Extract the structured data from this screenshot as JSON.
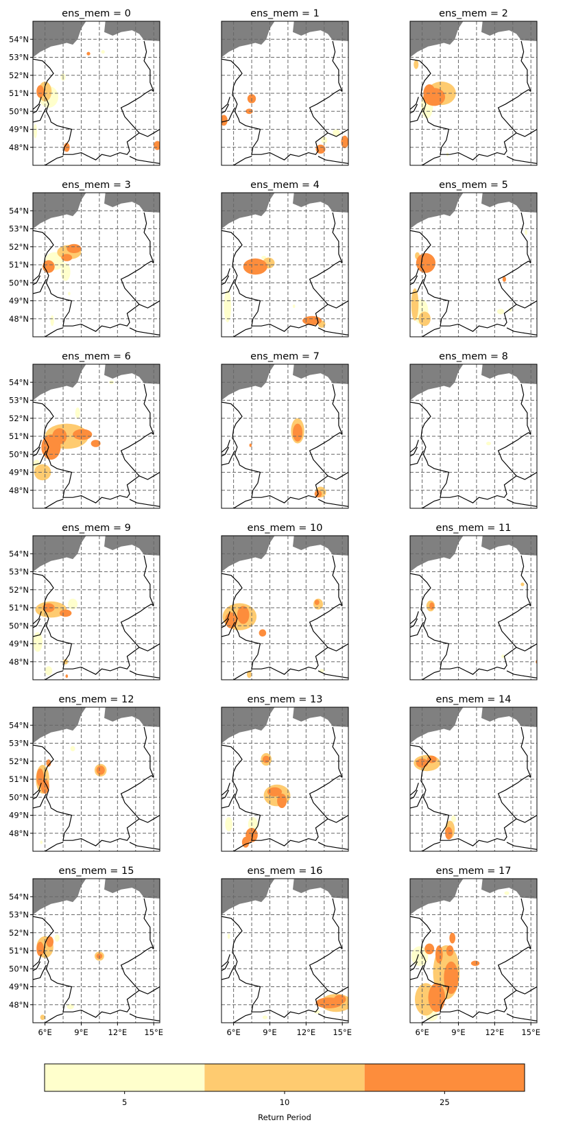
{
  "chart_data": {
    "type": "heatmap",
    "panel_title_prefix": "ens_mem = ",
    "members": [
      0,
      1,
      2,
      3,
      4,
      5,
      6,
      7,
      8,
      9,
      10,
      11,
      12,
      13,
      14,
      15,
      16,
      17
    ],
    "grid": {
      "rows": 6,
      "cols": 3
    },
    "lon_range": [
      5.0,
      15.5
    ],
    "lat_range": [
      47.0,
      55.0
    ],
    "lat_ticks": [
      48,
      49,
      50,
      51,
      52,
      53,
      54
    ],
    "lat_tick_labels": [
      "48°N",
      "49°N",
      "50°N",
      "51°N",
      "52°N",
      "53°N",
      "54°N"
    ],
    "lon_ticks": [
      6,
      9,
      12,
      15
    ],
    "lon_tick_labels": [
      "6°E",
      "9°E",
      "12°E",
      "15°E"
    ],
    "gridline_lons": [
      6,
      7.5,
      9,
      10.5,
      12,
      13.5,
      15
    ],
    "gridline_lats": [
      48,
      49,
      50,
      51,
      52,
      53,
      54
    ],
    "gridlines_style": "dashed",
    "ocean_color": "#808080",
    "border_color": "#000000",
    "colorbar": {
      "label": "Return Period",
      "levels": [
        {
          "label": "5",
          "color": "#ffffcc"
        },
        {
          "label": "10",
          "color": "#fecb70"
        },
        {
          "label": "25",
          "color": "#fd8d3c"
        }
      ]
    },
    "blobs": [
      [
        [
          6.0,
          51.1,
          0.55,
          0.55,
          1
        ],
        [
          5.6,
          51.1,
          0.3,
          0.35,
          2
        ],
        [
          6.3,
          50.8,
          0.8,
          0.6,
          0
        ],
        [
          7.8,
          48.0,
          0.25,
          0.25,
          2
        ],
        [
          5.2,
          48.9,
          0.15,
          0.4,
          0
        ],
        [
          15.3,
          48.1,
          0.3,
          0.25,
          2
        ],
        [
          9.6,
          53.2,
          0.15,
          0.1,
          2
        ],
        [
          10.8,
          53.3,
          0.15,
          0.1,
          0
        ],
        [
          7.5,
          51.9,
          0.2,
          0.2,
          0
        ]
      ],
      [
        [
          5.2,
          49.5,
          0.3,
          0.3,
          2
        ],
        [
          7.3,
          50.0,
          0.3,
          0.15,
          2
        ],
        [
          7.5,
          50.7,
          0.35,
          0.25,
          2
        ],
        [
          13.2,
          47.9,
          0.4,
          0.25,
          2
        ],
        [
          15.2,
          48.3,
          0.3,
          0.35,
          2
        ],
        [
          13.5,
          48.4,
          0.25,
          0.2,
          0
        ],
        [
          14.5,
          48.8,
          0.3,
          0.2,
          0
        ]
      ],
      [
        [
          7.0,
          50.8,
          0.9,
          0.5,
          2
        ],
        [
          6.6,
          51.0,
          0.5,
          0.5,
          2
        ],
        [
          7.6,
          51.0,
          1.2,
          0.65,
          1
        ],
        [
          6.4,
          50.3,
          0.5,
          0.7,
          0
        ],
        [
          5.5,
          52.6,
          0.2,
          0.25,
          1
        ],
        [
          8.1,
          47.6,
          0.1,
          0.1,
          0
        ]
      ],
      [
        [
          6.3,
          50.9,
          0.5,
          0.35,
          2
        ],
        [
          8.4,
          51.9,
          0.6,
          0.25,
          2
        ],
        [
          7.8,
          51.4,
          0.45,
          0.2,
          2
        ],
        [
          8.0,
          51.7,
          1.0,
          0.4,
          1
        ],
        [
          6.8,
          51.2,
          0.8,
          0.5,
          0
        ],
        [
          7.7,
          50.6,
          0.4,
          0.5,
          0
        ],
        [
          8.0,
          49.4,
          0.1,
          0.1,
          0
        ],
        [
          6.6,
          47.9,
          0.15,
          0.3,
          0
        ]
      ],
      [
        [
          7.8,
          50.9,
          1.0,
          0.45,
          2
        ],
        [
          8.9,
          51.1,
          0.5,
          0.3,
          1
        ],
        [
          12.5,
          47.9,
          0.8,
          0.25,
          2
        ],
        [
          13.3,
          47.7,
          0.3,
          0.2,
          1
        ],
        [
          5.5,
          48.7,
          0.3,
          0.9,
          0
        ],
        [
          11.0,
          48.7,
          0.1,
          0.1,
          0
        ],
        [
          8.5,
          51.4,
          0.2,
          0.1,
          0
        ]
      ],
      [
        [
          6.3,
          51.1,
          0.8,
          0.55,
          2
        ],
        [
          5.6,
          51.5,
          0.2,
          0.2,
          1
        ],
        [
          5.4,
          48.8,
          0.3,
          0.9,
          1
        ],
        [
          6.2,
          48.0,
          0.5,
          0.4,
          1
        ],
        [
          5.9,
          48.4,
          0.6,
          0.7,
          0
        ],
        [
          12.8,
          50.2,
          0.15,
          0.15,
          2
        ],
        [
          12.5,
          48.4,
          0.3,
          0.15,
          0
        ],
        [
          14.6,
          52.8,
          0.1,
          0.15,
          0
        ],
        [
          13.3,
          48.5,
          0.15,
          0.1,
          0
        ]
      ],
      [
        [
          6.5,
          50.4,
          0.8,
          0.7,
          2
        ],
        [
          7.2,
          51.0,
          0.6,
          0.45,
          2
        ],
        [
          9.1,
          51.1,
          0.8,
          0.3,
          2
        ],
        [
          10.2,
          50.6,
          0.4,
          0.2,
          2
        ],
        [
          7.8,
          51.0,
          1.8,
          0.7,
          1
        ],
        [
          5.8,
          49.0,
          0.7,
          0.45,
          1
        ],
        [
          5.3,
          49.4,
          0.3,
          0.3,
          0
        ],
        [
          8.7,
          52.3,
          0.2,
          0.3,
          0
        ],
        [
          11.5,
          54.0,
          0.2,
          0.1,
          0
        ]
      ],
      [
        [
          11.3,
          51.2,
          0.4,
          0.5,
          2
        ],
        [
          13.0,
          47.8,
          0.3,
          0.2,
          2
        ],
        [
          11.3,
          51.3,
          0.55,
          0.7,
          1
        ],
        [
          7.4,
          50.5,
          0.1,
          0.1,
          2
        ],
        [
          13.2,
          47.9,
          0.45,
          0.3,
          1
        ]
      ],
      [
        [
          11.5,
          50.6,
          0.2,
          0.1,
          0
        ]
      ],
      [
        [
          6.3,
          51.0,
          0.5,
          0.25,
          2
        ],
        [
          7.7,
          50.7,
          0.5,
          0.2,
          2
        ],
        [
          6.5,
          50.9,
          1.3,
          0.45,
          1
        ],
        [
          5.4,
          49.1,
          0.4,
          0.55,
          0
        ],
        [
          7.7,
          48.0,
          0.2,
          0.15,
          1
        ],
        [
          8.3,
          51.2,
          0.4,
          0.3,
          0
        ],
        [
          7.8,
          47.2,
          0.1,
          0.1,
          2
        ],
        [
          6.3,
          47.5,
          0.3,
          0.25,
          0
        ]
      ],
      [
        [
          5.8,
          50.3,
          0.5,
          0.45,
          2
        ],
        [
          6.8,
          50.6,
          0.5,
          0.5,
          2
        ],
        [
          8.4,
          49.6,
          0.3,
          0.2,
          2
        ],
        [
          6.5,
          50.5,
          1.4,
          0.75,
          1
        ],
        [
          12.9,
          51.3,
          0.2,
          0.15,
          2
        ],
        [
          13.0,
          51.2,
          0.4,
          0.3,
          1
        ],
        [
          13.3,
          47.5,
          0.2,
          0.1,
          0
        ],
        [
          7.3,
          47.3,
          0.2,
          0.2,
          1
        ]
      ],
      [
        [
          6.8,
          51.1,
          0.2,
          0.2,
          2
        ],
        [
          6.7,
          51.1,
          0.35,
          0.3,
          1
        ],
        [
          14.3,
          52.3,
          0.15,
          0.1,
          1
        ],
        [
          15.5,
          48.0,
          0.1,
          0.1,
          2
        ],
        [
          12.7,
          48.3,
          0.15,
          0.1,
          0
        ]
      ],
      [
        [
          5.6,
          51.1,
          0.3,
          0.5,
          2
        ],
        [
          6.0,
          50.6,
          0.35,
          0.4,
          2
        ],
        [
          6.3,
          51.9,
          0.2,
          0.2,
          2
        ],
        [
          5.8,
          51.0,
          0.55,
          0.8,
          1
        ],
        [
          10.6,
          51.5,
          0.35,
          0.25,
          2
        ],
        [
          10.6,
          51.5,
          0.5,
          0.35,
          1
        ],
        [
          8.3,
          52.7,
          0.2,
          0.15,
          0
        ],
        [
          5.7,
          47.5,
          0.1,
          0.1,
          0
        ]
      ],
      [
        [
          8.7,
          52.1,
          0.3,
          0.2,
          2
        ],
        [
          8.7,
          52.1,
          0.45,
          0.35,
          1
        ],
        [
          9.4,
          50.3,
          0.6,
          0.25,
          2
        ],
        [
          10.0,
          49.8,
          0.4,
          0.4,
          2
        ],
        [
          9.6,
          50.1,
          1.1,
          0.6,
          1
        ],
        [
          7.5,
          47.9,
          0.5,
          0.4,
          2
        ],
        [
          7.0,
          47.5,
          0.3,
          0.3,
          2
        ],
        [
          5.6,
          48.5,
          0.3,
          0.4,
          0
        ],
        [
          7.6,
          48.5,
          0.4,
          0.4,
          0
        ]
      ],
      [
        [
          6.0,
          51.9,
          0.5,
          0.25,
          2
        ],
        [
          6.8,
          52.1,
          0.4,
          0.2,
          2
        ],
        [
          6.4,
          51.9,
          1.1,
          0.45,
          1
        ],
        [
          8.2,
          48.0,
          0.3,
          0.35,
          2
        ],
        [
          8.3,
          48.2,
          0.4,
          0.5,
          1
        ],
        [
          8.6,
          48.8,
          0.2,
          0.2,
          0
        ]
      ],
      [
        [
          5.6,
          51.1,
          0.3,
          0.4,
          2
        ],
        [
          6.4,
          51.5,
          0.3,
          0.3,
          2
        ],
        [
          6.0,
          51.2,
          0.7,
          0.6,
          1
        ],
        [
          10.5,
          50.7,
          0.25,
          0.15,
          2
        ],
        [
          10.5,
          50.7,
          0.4,
          0.25,
          1
        ],
        [
          8.1,
          47.9,
          0.3,
          0.15,
          0
        ],
        [
          7.0,
          51.7,
          0.2,
          0.2,
          0
        ],
        [
          5.8,
          47.3,
          0.2,
          0.15,
          1
        ]
      ],
      [
        [
          13.9,
          48.1,
          1.1,
          0.3,
          2
        ],
        [
          14.8,
          48.3,
          0.5,
          0.25,
          2
        ],
        [
          14.5,
          48.1,
          1.3,
          0.5,
          1
        ],
        [
          12.9,
          47.6,
          0.25,
          0.1,
          0
        ],
        [
          5.6,
          51.8,
          0.1,
          0.15,
          0
        ],
        [
          8.6,
          47.3,
          0.2,
          0.1,
          0
        ]
      ],
      [
        [
          6.6,
          51.1,
          0.4,
          0.3,
          2
        ],
        [
          7.4,
          50.8,
          0.3,
          0.5,
          2
        ],
        [
          8.3,
          51.0,
          0.3,
          0.3,
          2
        ],
        [
          8.4,
          49.5,
          0.6,
          0.9,
          2
        ],
        [
          7.2,
          48.4,
          0.7,
          0.8,
          2
        ],
        [
          10.4,
          50.3,
          0.35,
          0.15,
          2
        ],
        [
          8.0,
          49.8,
          1.1,
          1.5,
          1
        ],
        [
          6.3,
          48.3,
          0.9,
          0.9,
          1
        ],
        [
          5.8,
          50.7,
          0.7,
          0.55,
          0
        ],
        [
          8.5,
          51.7,
          0.25,
          0.3,
          2
        ],
        [
          6.8,
          47.4,
          0.5,
          0.3,
          0
        ],
        [
          13.0,
          54.2,
          0.2,
          0.1,
          0
        ]
      ]
    ]
  }
}
